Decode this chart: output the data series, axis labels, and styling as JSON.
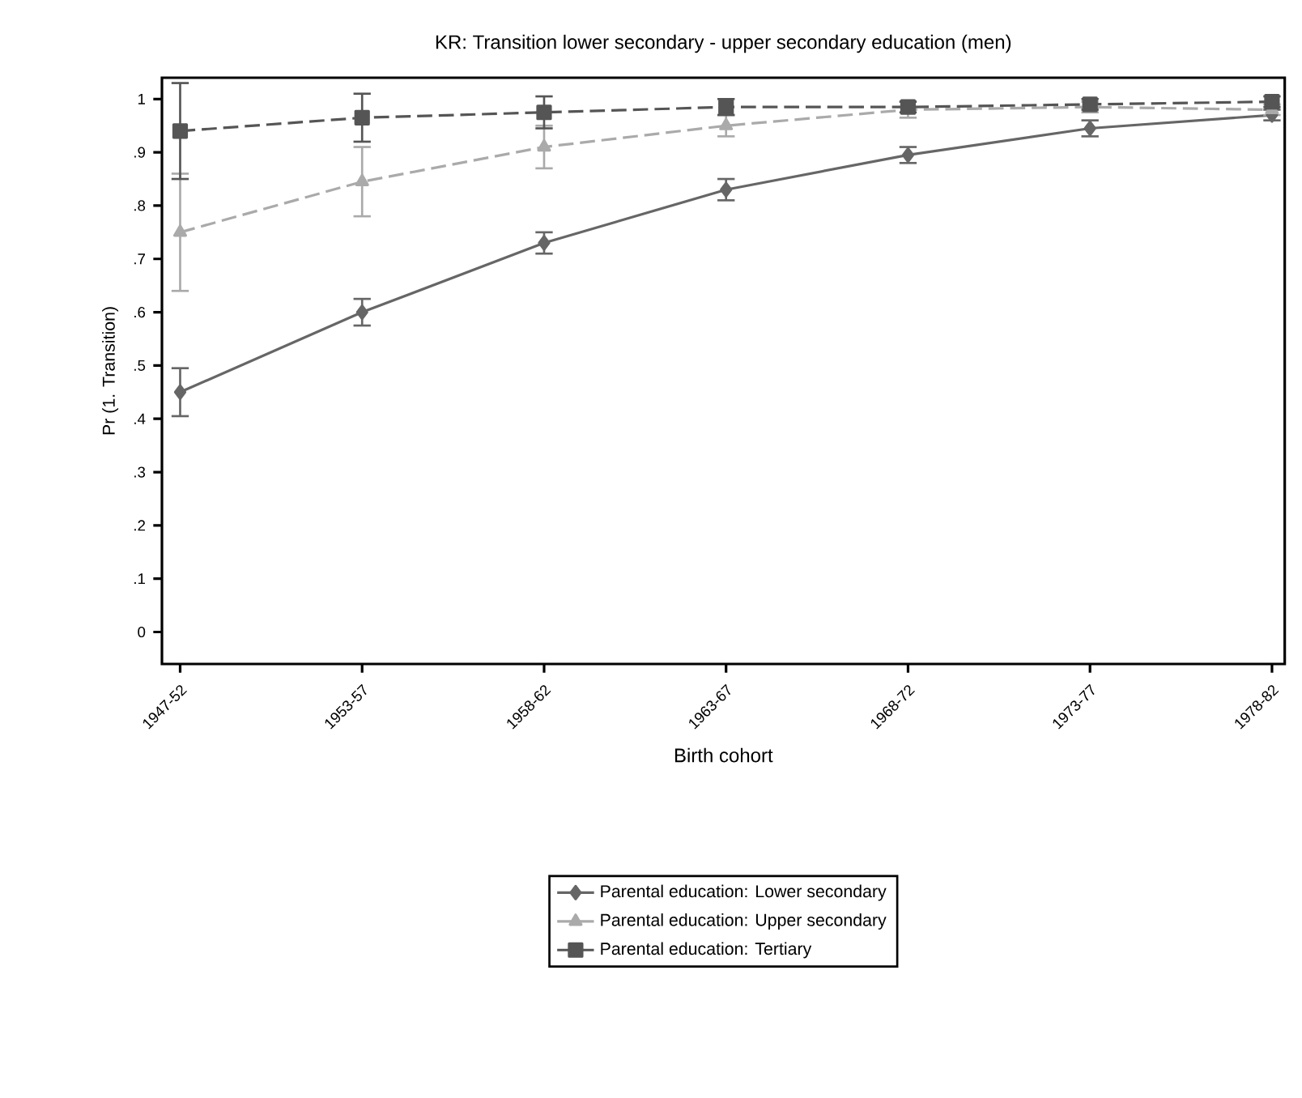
{
  "chart_data": {
    "type": "line",
    "title": "KR: Transition lower secondary - upper secondary education (men)",
    "xlabel": "Birth cohort",
    "ylabel": "Pr (1. Transition)",
    "categories": [
      "1947-52",
      "1953-57",
      "1958-62",
      "1963-67",
      "1968-72",
      "1973-77",
      "1978-82"
    ],
    "ylim": [
      -0.06,
      1.04
    ],
    "yticks": [
      0,
      {
        "value": 0.1,
        "label": ".1"
      },
      {
        "value": 0.2,
        "label": ".2"
      },
      {
        "value": 0.3,
        "label": ".3"
      },
      {
        "value": 0.4,
        "label": ".4"
      },
      {
        "value": 0.5,
        "label": ".5"
      },
      {
        "value": 0.6,
        "label": ".6"
      },
      {
        "value": 0.7,
        "label": ".7"
      },
      {
        "value": 0.8,
        "label": ".8"
      },
      {
        "value": 0.9,
        "label": ".9"
      },
      1
    ],
    "grid": false,
    "legend": "bottom",
    "series": [
      {
        "name": "Parental education: Lower secondary",
        "color": "#666666",
        "marker": "diamond",
        "line_style": "solid",
        "values": [
          0.45,
          0.6,
          0.73,
          0.83,
          0.895,
          0.945,
          0.97
        ],
        "errors": [
          0.045,
          0.025,
          0.02,
          0.02,
          0.015,
          0.015,
          0.01
        ]
      },
      {
        "name": "Parental education: Upper secondary",
        "color": "#aaaaaa",
        "marker": "triangle",
        "line_style": "dashed",
        "values": [
          0.75,
          0.845,
          0.91,
          0.95,
          0.98,
          0.985,
          0.98
        ],
        "errors": [
          0.11,
          0.065,
          0.04,
          0.02,
          0.015,
          0.01,
          0.01
        ]
      },
      {
        "name": "Parental education: Tertiary",
        "color": "#555555",
        "marker": "square",
        "line_style": "dashed",
        "values": [
          0.94,
          0.965,
          0.975,
          0.985,
          0.985,
          0.99,
          0.995
        ],
        "errors": [
          0.09,
          0.045,
          0.03,
          0.015,
          0.01,
          0.01,
          0.01
        ]
      }
    ]
  }
}
